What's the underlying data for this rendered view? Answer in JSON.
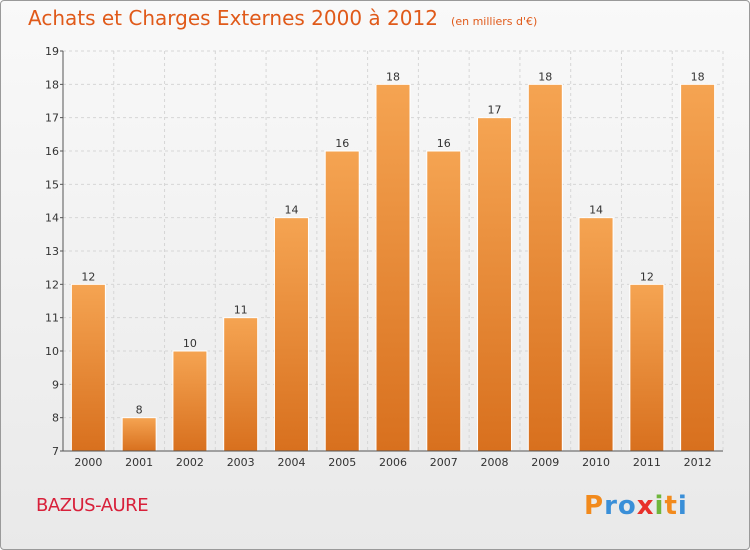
{
  "title": "Achats et Charges Externes 2000 à 2012",
  "subtitle": "(en milliers d'€)",
  "commune": "BAZUS-AURE",
  "logo": {
    "letters": [
      "P",
      "r",
      "o",
      "x",
      "i",
      "t",
      "i"
    ],
    "colors": [
      "#f28a1c",
      "#3a8fd8",
      "#3a8fd8",
      "#e8302a",
      "#6fb63c",
      "#f28a1c",
      "#3a8fd8"
    ]
  },
  "colors": {
    "bar_light": "#f5a452",
    "bar_dark": "#d8701e",
    "title": "#e05a1a",
    "commune": "#d8203a"
  },
  "chart_data": {
    "type": "bar",
    "title": "Achats et Charges Externes 2000 à 2012",
    "subtitle": "(en milliers d'€)",
    "categories": [
      "2000",
      "2001",
      "2002",
      "2003",
      "2004",
      "2005",
      "2006",
      "2007",
      "2008",
      "2009",
      "2010",
      "2011",
      "2012"
    ],
    "values": [
      12,
      8,
      10,
      11,
      14,
      16,
      18,
      16,
      17,
      18,
      14,
      12,
      18
    ],
    "ylim": [
      7,
      19
    ],
    "yticks": [
      7,
      8,
      9,
      10,
      11,
      12,
      13,
      14,
      15,
      16,
      17,
      18,
      19
    ],
    "grid": true
  }
}
